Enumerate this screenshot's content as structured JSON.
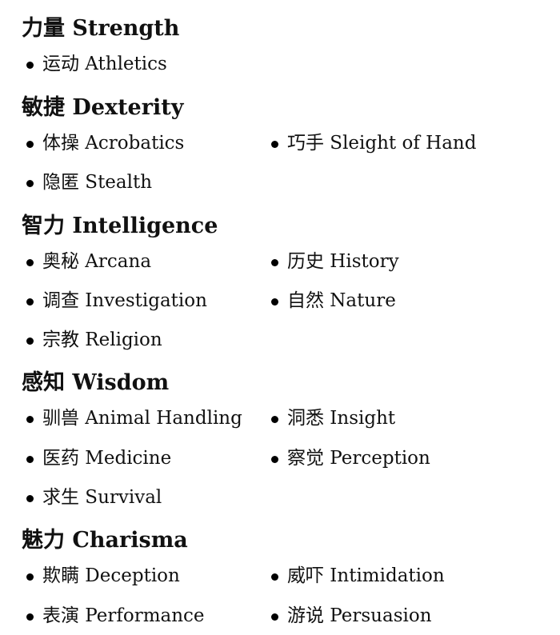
{
  "sections": [
    {
      "heading": "力量 Strength",
      "skills": [
        "运动 Athletics"
      ]
    },
    {
      "heading": "敏捷 Dexterity",
      "skills": [
        "体操 Acrobatics",
        "巧手 Sleight of Hand",
        "隐匿 Stealth"
      ]
    },
    {
      "heading": "智力 Intelligence",
      "skills": [
        "奥秘 Arcana",
        "历史 History",
        "调查 Investigation",
        "自然 Nature",
        "宗教 Religion"
      ]
    },
    {
      "heading": "感知 Wisdom",
      "skills": [
        "驯兽 Animal Handling",
        "洞悉 Insight",
        "医药 Medicine",
        "察觉 Perception",
        "求生 Survival"
      ]
    },
    {
      "heading": "魅力 Charisma",
      "skills": [
        "欺瞒 Deception",
        "威吓 Intimidation",
        "表演 Performance",
        "游说 Persuasion"
      ]
    }
  ]
}
